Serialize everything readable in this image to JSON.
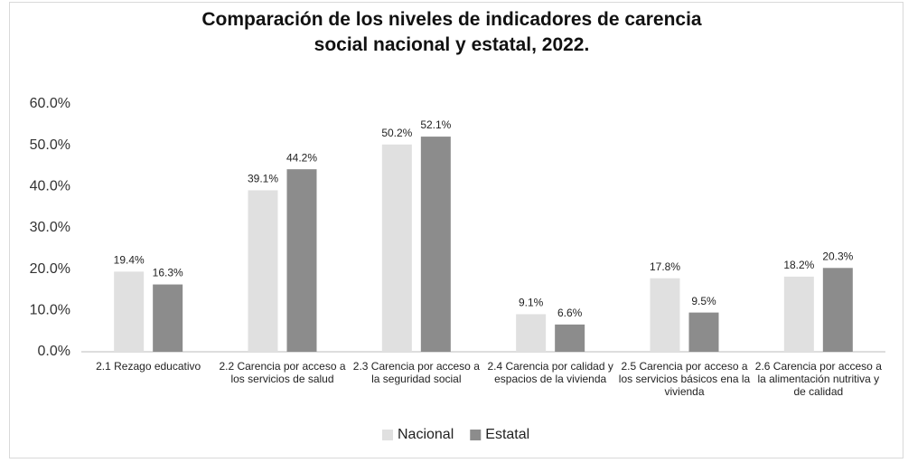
{
  "chart_data": {
    "type": "bar",
    "title": "Comparación de los niveles de indicadores de carencia social nacional y estatal, 2022.",
    "categories": [
      "2.1 Rezago educativo",
      "2.2 Carencia por acceso a los servicios de salud",
      "2.3 Carencia por acceso a la seguridad social",
      "2.4 Carencia por calidad y espacios de la vivienda",
      "2.5 Carencia por acceso a los servicios básicos ena la vivienda",
      "2.6 Carencia por acceso a la alimentación nutritiva y de calidad"
    ],
    "series": [
      {
        "name": "Nacional",
        "color": "#e0e0e0",
        "values": [
          19.4,
          39.1,
          50.2,
          9.1,
          17.8,
          18.2
        ],
        "value_labels": [
          "19.4%",
          "39.1%",
          "50.2%",
          "9.1%",
          "17.8%",
          "18.2%"
        ]
      },
      {
        "name": "Estatal",
        "color": "#8c8c8c",
        "values": [
          16.3,
          44.2,
          52.1,
          6.6,
          9.5,
          20.3
        ],
        "value_labels": [
          "16.3%",
          "44.2%",
          "52.1%",
          "6.6%",
          "9.5%",
          "20.3%"
        ]
      }
    ],
    "ylim": [
      0,
      60
    ],
    "yticks": [
      {
        "value": 0,
        "label": "0.0%"
      },
      {
        "value": 10,
        "label": "10.0%"
      },
      {
        "value": 20,
        "label": "20.0%"
      },
      {
        "value": 30,
        "label": "30.0%"
      },
      {
        "value": 40,
        "label": "40.0%"
      },
      {
        "value": 50,
        "label": "50.0%"
      },
      {
        "value": 60,
        "label": "60.0%"
      }
    ],
    "grid": false,
    "legend": "bottom"
  }
}
